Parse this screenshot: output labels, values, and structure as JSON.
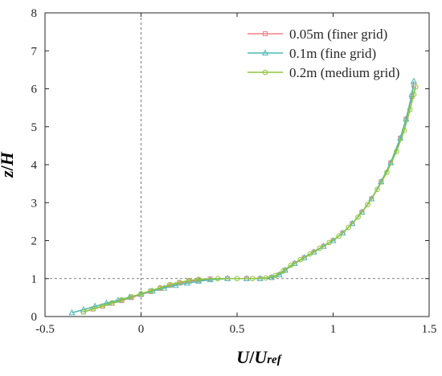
{
  "chart_data": {
    "type": "line",
    "title": "",
    "xlabel": {
      "main": "U",
      "slash": "/",
      "base": "U",
      "subscript": "ref"
    },
    "ylabel": {
      "main": "z",
      "slash": "/",
      "base": "H"
    },
    "xlim": [
      -0.5,
      1.5
    ],
    "ylim": [
      0,
      8
    ],
    "xticks": [
      -0.5,
      0,
      0.5,
      1,
      1.5
    ],
    "xtick_labels": [
      "-0.5",
      "0",
      "0.5",
      "1",
      "1.5"
    ],
    "yticks": [
      0,
      1,
      2,
      3,
      4,
      5,
      6,
      7,
      8
    ],
    "ytick_labels": [
      "0",
      "1",
      "2",
      "3",
      "4",
      "5",
      "6",
      "7",
      "8"
    ],
    "grid": false,
    "reference_lines": [
      {
        "orientation": "vertical",
        "value": 0,
        "style": "dashed"
      },
      {
        "orientation": "horizontal",
        "value": 1,
        "style": "dashed"
      }
    ],
    "legend_position": "top-right",
    "series": [
      {
        "name": "0.05m (finer grid)",
        "color": "#f07f8a",
        "marker": "square",
        "x": [
          -0.3,
          -0.25,
          -0.2,
          -0.15,
          -0.1,
          -0.05,
          0.0,
          0.05,
          0.1,
          0.15,
          0.2,
          0.25,
          0.3,
          0.36,
          0.45,
          0.55,
          0.62,
          0.68,
          0.72,
          0.75,
          0.8,
          0.85,
          0.9,
          0.95,
          1.0,
          1.05,
          1.1,
          1.15,
          1.2,
          1.25,
          1.3,
          1.35,
          1.38,
          1.41,
          1.42
        ],
        "y": [
          0.12,
          0.2,
          0.27,
          0.35,
          0.42,
          0.5,
          0.58,
          0.66,
          0.74,
          0.82,
          0.88,
          0.93,
          0.96,
          0.99,
          1.0,
          1.0,
          1.0,
          1.03,
          1.1,
          1.22,
          1.4,
          1.55,
          1.7,
          1.85,
          2.0,
          2.2,
          2.45,
          2.75,
          3.1,
          3.55,
          4.05,
          4.7,
          5.2,
          5.8,
          6.1
        ]
      },
      {
        "name": "0.1m (fine grid)",
        "color": "#4fb9b3",
        "marker": "triangle",
        "x": [
          -0.36,
          -0.3,
          -0.24,
          -0.18,
          -0.12,
          -0.06,
          0.0,
          0.06,
          0.12,
          0.18,
          0.24,
          0.3,
          0.36,
          0.45,
          0.55,
          0.62,
          0.68,
          0.72,
          0.75,
          0.8,
          0.85,
          0.9,
          0.95,
          1.0,
          1.05,
          1.1,
          1.15,
          1.2,
          1.25,
          1.3,
          1.35,
          1.38,
          1.41,
          1.42
        ],
        "y": [
          0.1,
          0.18,
          0.27,
          0.35,
          0.43,
          0.51,
          0.59,
          0.67,
          0.75,
          0.82,
          0.88,
          0.93,
          0.97,
          1.0,
          1.0,
          1.0,
          1.03,
          1.1,
          1.22,
          1.4,
          1.55,
          1.7,
          1.85,
          2.0,
          2.2,
          2.45,
          2.75,
          3.1,
          3.55,
          4.05,
          4.7,
          5.2,
          5.85,
          6.2
        ]
      },
      {
        "name": "0.2m (medium grid)",
        "color": "#8dc63f",
        "marker": "circle",
        "x": [
          -0.3,
          -0.25,
          -0.2,
          -0.15,
          -0.1,
          -0.05,
          0.0,
          0.05,
          0.1,
          0.15,
          0.2,
          0.25,
          0.3,
          0.4,
          0.5,
          0.58,
          0.65,
          0.7,
          0.74,
          0.78,
          0.83,
          0.88,
          0.93,
          0.98,
          1.03,
          1.08,
          1.13,
          1.18,
          1.23,
          1.28,
          1.33,
          1.37,
          1.4,
          1.42,
          1.43
        ],
        "y": [
          0.12,
          0.2,
          0.28,
          0.36,
          0.44,
          0.52,
          0.6,
          0.68,
          0.76,
          0.84,
          0.9,
          0.95,
          0.98,
          1.0,
          1.0,
          1.0,
          1.02,
          1.08,
          1.2,
          1.35,
          1.5,
          1.65,
          1.8,
          1.95,
          2.12,
          2.35,
          2.62,
          2.95,
          3.35,
          3.8,
          4.35,
          4.9,
          5.45,
          5.85,
          6.05
        ]
      }
    ]
  }
}
